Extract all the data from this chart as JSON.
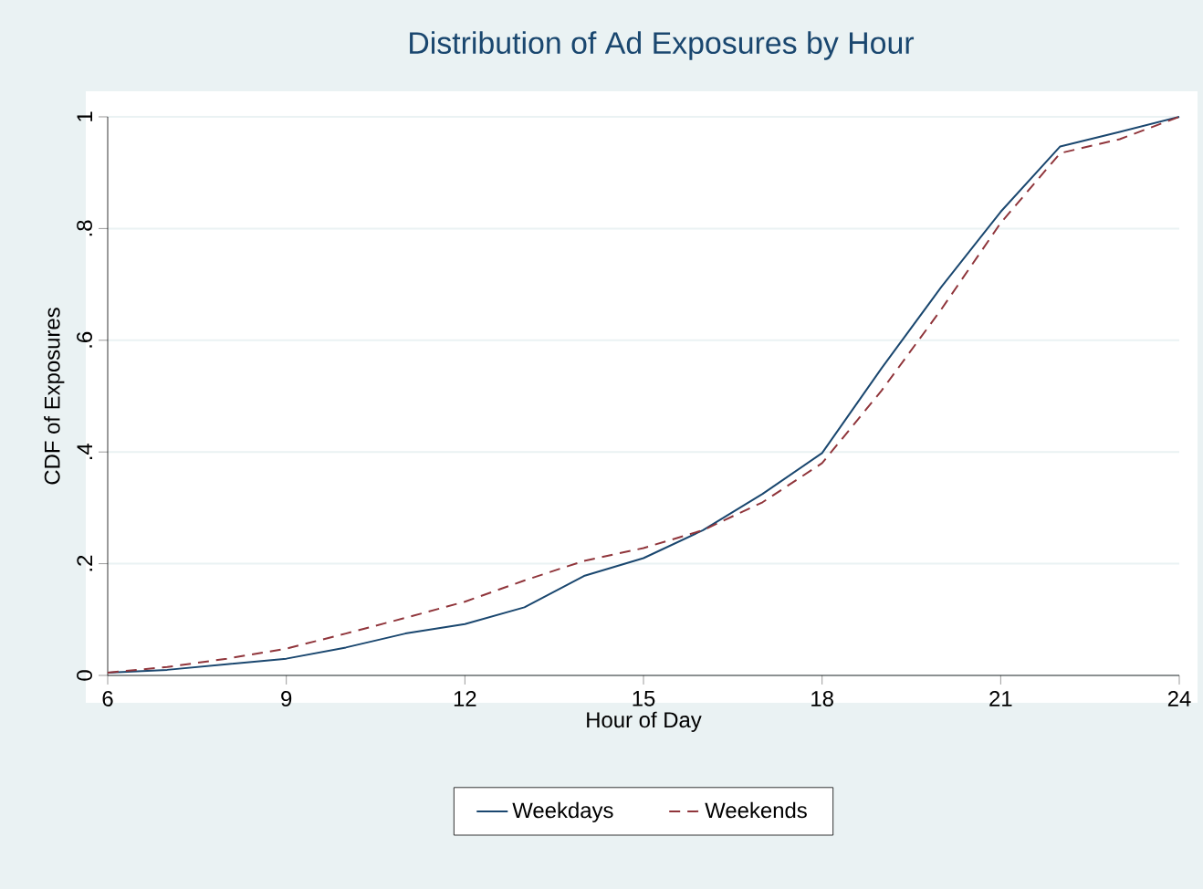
{
  "chart_data": {
    "type": "line",
    "title": "Distribution of Ad Exposures by Hour",
    "xlabel": "Hour of Day",
    "ylabel": "CDF of Exposures",
    "x": [
      6,
      7,
      8,
      9,
      10,
      11,
      12,
      13,
      14,
      15,
      16,
      17,
      18,
      19,
      20,
      21,
      22,
      23,
      24
    ],
    "series": [
      {
        "name": "Weekdays",
        "color": "#1a476f",
        "line_style": "solid",
        "values": [
          0.005,
          0.01,
          0.02,
          0.03,
          0.05,
          0.075,
          0.092,
          0.122,
          0.178,
          0.21,
          0.26,
          0.325,
          0.398,
          0.55,
          0.695,
          0.83,
          0.947,
          0.973,
          1
        ]
      },
      {
        "name": "Weekends",
        "color": "#90353b",
        "line_style": "dashed",
        "values": [
          0.005,
          0.015,
          0.03,
          0.048,
          0.075,
          0.103,
          0.132,
          0.17,
          0.205,
          0.228,
          0.26,
          0.31,
          0.38,
          0.51,
          0.655,
          0.81,
          0.935,
          0.96,
          1
        ]
      }
    ],
    "xlim": [
      6,
      24
    ],
    "ylim": [
      0,
      1
    ],
    "xticks": [
      6,
      9,
      12,
      15,
      18,
      21,
      24
    ],
    "yticks": [
      0,
      {
        "value": 0.2,
        "label": ".2"
      },
      {
        "value": 0.4,
        "label": ".4"
      },
      {
        "value": 0.6,
        "label": ".6"
      },
      {
        "value": 0.8,
        "label": ".8"
      },
      1
    ],
    "grid": "y",
    "legend": "bottom",
    "marker": "none"
  }
}
